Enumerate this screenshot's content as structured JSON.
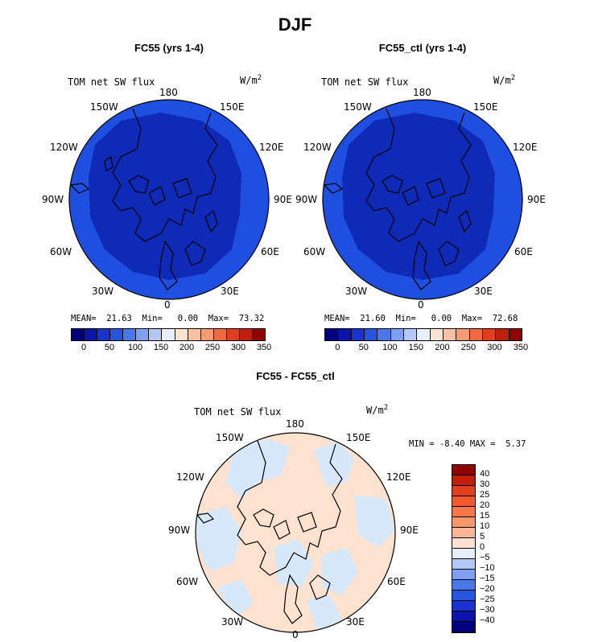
{
  "title": "DJF",
  "panels": [
    {
      "title": "FC55 (yrs 1-4)",
      "variable": "TOM net SW flux",
      "units": "W/m",
      "units_exp": "2",
      "stats": {
        "mean_label": "MEAN=",
        "mean": "21.63",
        "min_label": "Min=",
        "min": "0.00",
        "max_label": "Max=",
        "max": "73.32"
      }
    },
    {
      "title": "FC55_ctl (yrs 1-4)",
      "variable": "TOM net SW flux",
      "units": "W/m",
      "units_exp": "2",
      "stats": {
        "mean_label": "MEAN=",
        "mean": "21.60",
        "min_label": "Min=",
        "min": "0.00",
        "max_label": "Max=",
        "max": "72.68"
      }
    },
    {
      "title": "FC55 - FC55_ctl",
      "variable": "TOM net SW flux",
      "units": "W/m",
      "units_exp": "2",
      "stats": {
        "min_label": "MIN =",
        "min": "-8.40",
        "max_label": "MAX =",
        "max": "5.37"
      }
    }
  ],
  "lon_labels": {
    "top": "180",
    "bottom": "0",
    "w150": "150W",
    "w120": "120W",
    "w90": "90W",
    "w60": "60W",
    "w30": "30W",
    "e150": "150E",
    "e120": "120E",
    "e90": "90E",
    "e60": "60E",
    "e30": "30E"
  },
  "colorbar_top": {
    "colors": [
      "#00007f",
      "#0a14a8",
      "#1a33d0",
      "#2855e0",
      "#4a78ea",
      "#7fa0f2",
      "#b4c8f8",
      "#e6eeff",
      "#ffe2d0",
      "#fbc0a2",
      "#f89a72",
      "#f06a42",
      "#e0401e",
      "#c01f0c",
      "#8f0000"
    ],
    "ticks": [
      "0",
      "50",
      "100",
      "150",
      "200",
      "250",
      "300",
      "350"
    ]
  },
  "colorbar_diff": {
    "colors": [
      "#8f0000",
      "#c01f0c",
      "#e0401e",
      "#f05a2e",
      "#f4784a",
      "#f8976c",
      "#fbb795",
      "#ffe2d0",
      "#e6eeff",
      "#b4c8f8",
      "#7fa0f2",
      "#4a78ea",
      "#2855e0",
      "#1a33d0",
      "#0a14a8",
      "#00007f"
    ],
    "ticks": [
      "40",
      "30",
      "25",
      "20",
      "15",
      "10",
      "5",
      "0",
      "−5",
      "−10",
      "−15",
      "−20",
      "−25",
      "−30",
      "−40"
    ]
  },
  "colors": {
    "map_outer": "#1e4fe0",
    "map_inner": "#102ab8",
    "diff_pos": "#fde3cf",
    "diff_neg": "#d8e8fb"
  }
}
